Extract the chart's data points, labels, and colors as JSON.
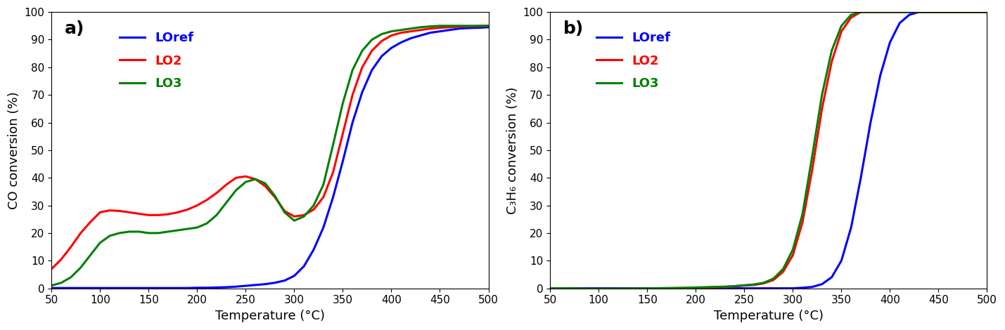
{
  "panel_a": {
    "label": "a)",
    "xlabel": "Temperature (°C)",
    "ylabel": "CO conversion (%)",
    "xlim": [
      50,
      500
    ],
    "ylim": [
      0,
      100
    ],
    "xticks": [
      50,
      100,
      150,
      200,
      250,
      300,
      350,
      400,
      450,
      500
    ],
    "yticks": [
      0,
      10,
      20,
      30,
      40,
      50,
      60,
      70,
      80,
      90,
      100
    ],
    "LOref": {
      "color": "#0000FF",
      "label": "LOref",
      "x": [
        50,
        60,
        70,
        80,
        90,
        100,
        110,
        120,
        130,
        140,
        150,
        160,
        170,
        180,
        190,
        200,
        210,
        220,
        230,
        240,
        250,
        260,
        270,
        280,
        290,
        300,
        310,
        320,
        330,
        340,
        350,
        360,
        370,
        380,
        390,
        400,
        410,
        420,
        430,
        440,
        450,
        460,
        470,
        480,
        490,
        500
      ],
      "y": [
        0.1,
        0.1,
        0.1,
        0.1,
        0.1,
        0.1,
        0.1,
        0.1,
        0.1,
        0.1,
        0.1,
        0.1,
        0.1,
        0.1,
        0.1,
        0.2,
        0.2,
        0.3,
        0.4,
        0.6,
        0.9,
        1.2,
        1.5,
        2.0,
        2.8,
        4.5,
        8.0,
        14.0,
        22.0,
        33.0,
        46.0,
        60.0,
        71.0,
        79.0,
        84.0,
        87.0,
        89.0,
        90.5,
        91.5,
        92.5,
        93.0,
        93.5,
        94.0,
        94.2,
        94.3,
        94.5
      ]
    },
    "LO2": {
      "color": "#FF0000",
      "label": "LO2",
      "x": [
        50,
        60,
        70,
        80,
        90,
        100,
        110,
        120,
        130,
        140,
        150,
        160,
        170,
        180,
        190,
        200,
        210,
        220,
        230,
        240,
        250,
        260,
        270,
        280,
        290,
        300,
        310,
        320,
        330,
        340,
        350,
        360,
        370,
        380,
        390,
        400,
        410,
        420,
        430,
        440,
        450,
        460,
        470,
        480,
        490,
        500
      ],
      "y": [
        7.0,
        10.5,
        15.0,
        20.0,
        24.0,
        27.5,
        28.2,
        28.0,
        27.5,
        27.0,
        26.5,
        26.5,
        26.8,
        27.5,
        28.5,
        30.0,
        32.0,
        34.5,
        37.5,
        40.0,
        40.5,
        39.5,
        37.0,
        33.0,
        28.0,
        26.0,
        26.5,
        28.5,
        33.0,
        42.0,
        56.0,
        70.0,
        80.0,
        86.0,
        89.5,
        91.5,
        92.5,
        93.0,
        93.5,
        94.0,
        94.3,
        94.5,
        94.7,
        94.8,
        94.9,
        95.0
      ]
    },
    "LO3": {
      "color": "#008000",
      "label": "LO3",
      "x": [
        50,
        60,
        70,
        80,
        90,
        100,
        110,
        120,
        130,
        140,
        150,
        160,
        170,
        180,
        190,
        200,
        210,
        220,
        230,
        240,
        250,
        260,
        270,
        280,
        290,
        300,
        310,
        320,
        330,
        340,
        350,
        360,
        370,
        380,
        390,
        400,
        410,
        420,
        430,
        440,
        450,
        460,
        470,
        480,
        490,
        500
      ],
      "y": [
        1.0,
        2.0,
        4.0,
        7.5,
        12.0,
        16.5,
        19.0,
        20.0,
        20.5,
        20.5,
        20.0,
        20.0,
        20.5,
        21.0,
        21.5,
        22.0,
        23.5,
        26.5,
        31.0,
        35.5,
        38.5,
        39.5,
        38.0,
        33.5,
        27.5,
        24.5,
        26.0,
        30.0,
        37.5,
        52.0,
        67.0,
        79.0,
        86.0,
        90.0,
        92.0,
        93.0,
        93.5,
        94.0,
        94.5,
        94.8,
        95.0,
        95.0,
        95.0,
        95.0,
        95.0,
        95.0
      ]
    }
  },
  "panel_b": {
    "label": "b)",
    "xlabel": "Temperature (°C)",
    "ylabel": "C₃H₆ conversion (%)",
    "xlim": [
      50,
      500
    ],
    "ylim": [
      0,
      100
    ],
    "xticks": [
      50,
      100,
      150,
      200,
      250,
      300,
      350,
      400,
      450,
      500
    ],
    "yticks": [
      0,
      10,
      20,
      30,
      40,
      50,
      60,
      70,
      80,
      90,
      100
    ],
    "LOref": {
      "color": "#0000FF",
      "label": "LOref",
      "x": [
        50,
        60,
        70,
        80,
        90,
        100,
        110,
        120,
        130,
        140,
        150,
        160,
        170,
        180,
        190,
        200,
        210,
        220,
        230,
        240,
        250,
        260,
        270,
        280,
        290,
        300,
        310,
        320,
        330,
        340,
        350,
        360,
        370,
        380,
        390,
        400,
        410,
        420,
        430,
        440,
        450,
        460,
        470,
        480,
        490,
        500
      ],
      "y": [
        0.0,
        0.0,
        0.0,
        0.0,
        0.0,
        0.0,
        0.0,
        0.0,
        0.0,
        0.0,
        0.0,
        0.0,
        0.0,
        0.0,
        0.0,
        0.0,
        0.0,
        0.0,
        0.0,
        0.0,
        0.0,
        0.0,
        0.0,
        0.0,
        0.0,
        0.0,
        0.2,
        0.5,
        1.5,
        4.0,
        10.0,
        22.0,
        40.0,
        60.0,
        77.0,
        89.0,
        96.0,
        99.0,
        100.0,
        100.0,
        100.0,
        100.0,
        100.0,
        100.0,
        100.0,
        100.0
      ]
    },
    "LO2": {
      "color": "#FF0000",
      "label": "LO2",
      "x": [
        50,
        60,
        70,
        80,
        90,
        100,
        110,
        120,
        130,
        140,
        150,
        160,
        170,
        180,
        190,
        200,
        210,
        220,
        230,
        240,
        250,
        260,
        270,
        280,
        290,
        300,
        310,
        320,
        330,
        340,
        350,
        360,
        370,
        380,
        390,
        400,
        410,
        420,
        430,
        440,
        450,
        460,
        470,
        480,
        490,
        500
      ],
      "y": [
        0.0,
        0.0,
        0.0,
        -0.2,
        -0.3,
        -0.3,
        -0.3,
        -0.2,
        -0.2,
        -0.2,
        -0.1,
        0.0,
        0.0,
        0.1,
        0.1,
        0.2,
        0.3,
        0.4,
        0.5,
        0.7,
        1.0,
        1.2,
        1.8,
        3.0,
        6.0,
        12.0,
        24.0,
        43.0,
        65.0,
        82.0,
        93.0,
        98.0,
        100.0,
        100.0,
        100.0,
        100.0,
        100.0,
        100.0,
        100.0,
        100.0,
        100.0,
        100.0,
        100.0,
        100.0,
        100.0,
        100.0
      ]
    },
    "LO3": {
      "color": "#008000",
      "label": "LO3",
      "x": [
        50,
        60,
        70,
        80,
        90,
        100,
        110,
        120,
        130,
        140,
        150,
        160,
        170,
        180,
        190,
        200,
        210,
        220,
        230,
        240,
        250,
        260,
        270,
        280,
        290,
        300,
        310,
        320,
        330,
        340,
        350,
        360,
        370,
        380,
        390,
        400,
        410,
        420,
        430,
        440,
        450,
        460,
        470,
        480,
        490,
        500
      ],
      "y": [
        0.0,
        0.0,
        0.0,
        -0.1,
        -0.2,
        -0.2,
        -0.2,
        -0.2,
        -0.1,
        -0.1,
        0.0,
        0.0,
        0.1,
        0.1,
        0.2,
        0.3,
        0.4,
        0.5,
        0.6,
        0.8,
        1.1,
        1.4,
        2.0,
        3.5,
        7.0,
        14.0,
        27.0,
        48.0,
        70.0,
        86.0,
        95.0,
        99.0,
        100.0,
        100.0,
        100.0,
        100.0,
        100.0,
        100.0,
        100.0,
        100.0,
        100.0,
        100.0,
        100.0,
        100.0,
        100.0,
        100.0
      ]
    }
  },
  "line_width": 2.2,
  "legend_fontsize": 13,
  "label_fontsize": 13,
  "tick_fontsize": 11,
  "panel_label_fontsize": 18
}
